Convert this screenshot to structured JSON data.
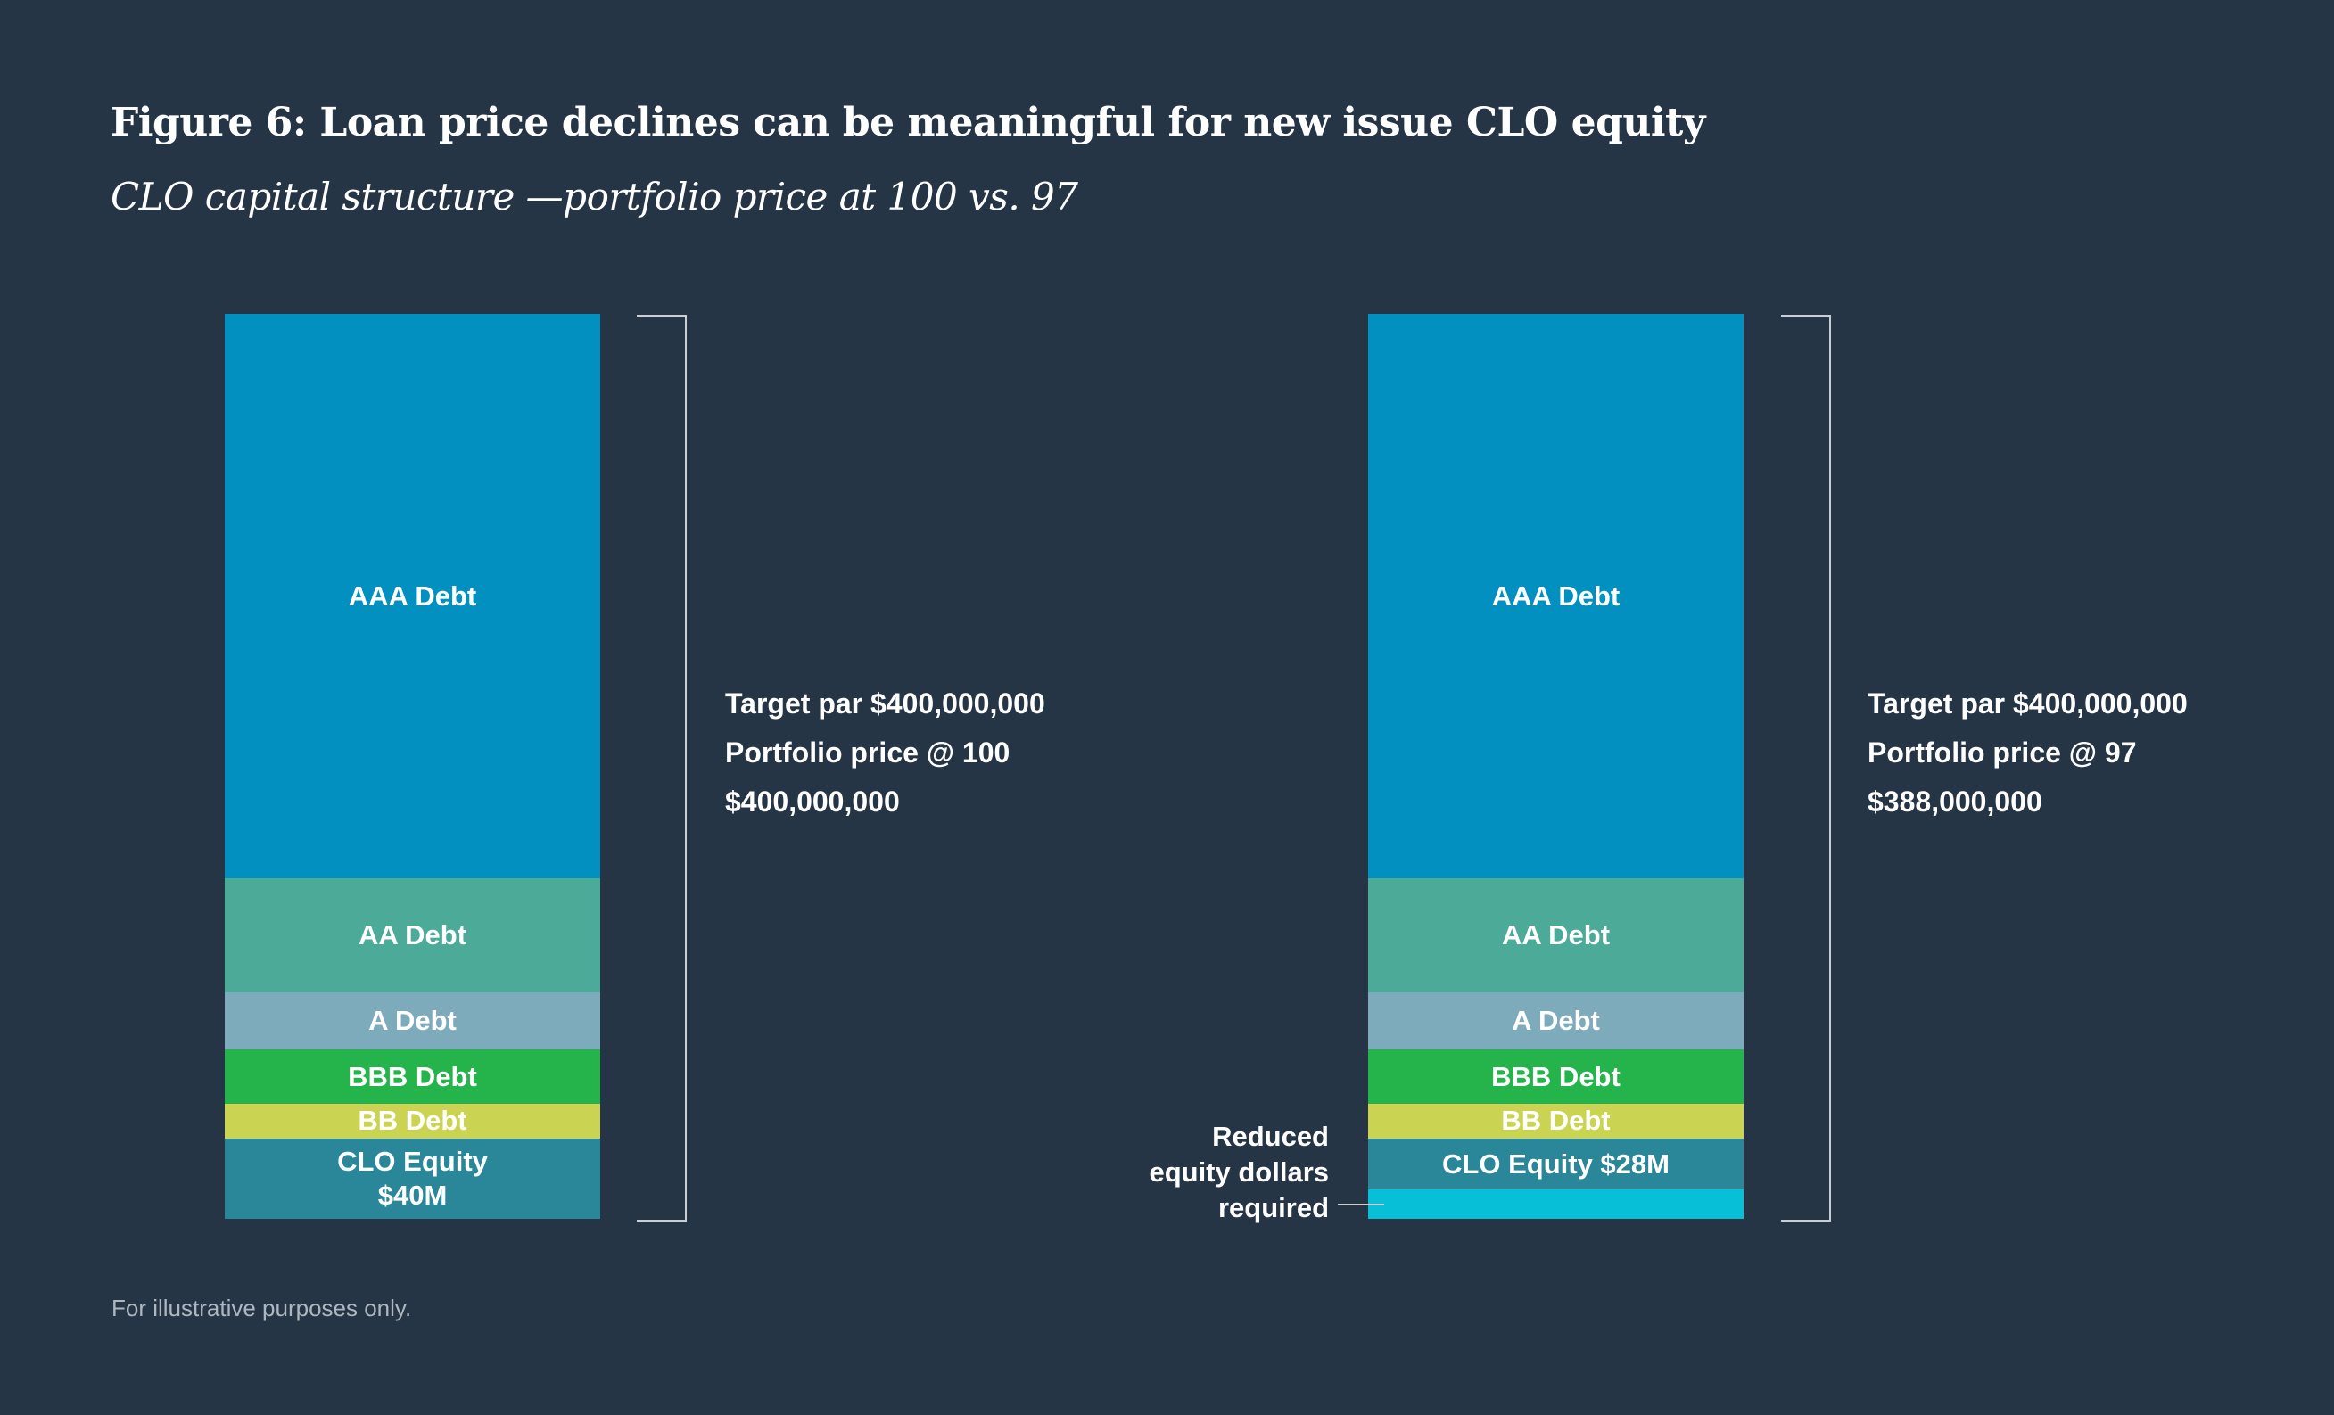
{
  "title": "Figure 6: Loan price declines can be meaningful for new issue CLO equity",
  "subtitle": "CLO capital structure —portfolio price at 100 vs. 97",
  "footnote": "For illustrative purposes only.",
  "chart_data": {
    "type": "bar",
    "stacked": true,
    "value_unit": "percent of bar height (illustrative)",
    "colors": {
      "AAA": "#0190c0",
      "AA": "#4caa98",
      "A": "#7eabbb",
      "BBB": "#25b34b",
      "BB": "#cbd452",
      "Equity": "#2a8799",
      "Reduced": "#07bfd6"
    },
    "bars": [
      {
        "segments": [
          {
            "key": "AAA",
            "label": "AAA Debt",
            "value": 62.4
          },
          {
            "key": "AA",
            "label": "AA Debt",
            "value": 12.6
          },
          {
            "key": "A",
            "label": "A Debt",
            "value": 6.3
          },
          {
            "key": "BBB",
            "label": "BBB Debt",
            "value": 6.0
          },
          {
            "key": "BB",
            "label": "BB Debt",
            "value": 3.8
          },
          {
            "key": "Equity",
            "label": "CLO Equity\n$40M",
            "value": 8.9
          }
        ],
        "info": [
          "Target par $400,000,000",
          "Portfolio price @ 100",
          "$400,000,000"
        ]
      },
      {
        "segments": [
          {
            "key": "AAA",
            "label": "AAA Debt",
            "value": 62.4
          },
          {
            "key": "AA",
            "label": "AA Debt",
            "value": 12.6
          },
          {
            "key": "A",
            "label": "A Debt",
            "value": 6.3
          },
          {
            "key": "BBB",
            "label": "BBB Debt",
            "value": 6.0
          },
          {
            "key": "BB",
            "label": "BB Debt",
            "value": 3.8
          },
          {
            "key": "Equity",
            "label": "CLO Equity $28M",
            "value": 5.7
          },
          {
            "key": "Reduced",
            "label": "",
            "value": 3.2
          }
        ],
        "info": [
          "Target par $400,000,000",
          "Portfolio price @ 97",
          "$388,000,000"
        ],
        "annotation": [
          "Reduced",
          "equity dollars",
          "required"
        ]
      }
    ]
  }
}
